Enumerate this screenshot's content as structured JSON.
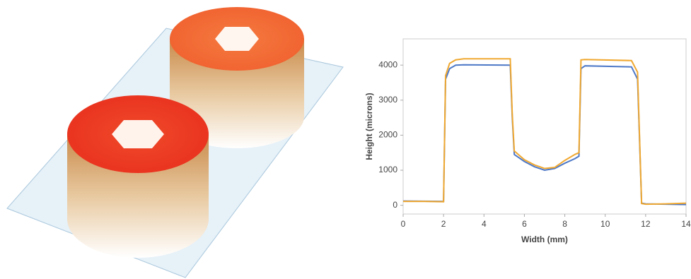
{
  "chart_data": {
    "type": "line",
    "x_label": "Width (mm)",
    "y_label": "Height (microns)",
    "x": [
      0,
      1,
      2,
      2.1,
      2.3,
      2.6,
      3,
      5.3,
      5.4,
      5.5,
      6,
      6.5,
      7,
      7.5,
      8,
      8.5,
      8.7,
      8.8,
      9,
      11.3,
      11.6,
      11.8,
      12,
      13,
      14
    ],
    "series": [
      {
        "color": "#4e79c7",
        "values": [
          120,
          115,
          110,
          3600,
          3900,
          4000,
          4010,
          4000,
          2500,
          1450,
          1250,
          1100,
          1000,
          1050,
          1200,
          1330,
          1400,
          3900,
          3980,
          3950,
          3600,
          60,
          40,
          30,
          20
        ]
      },
      {
        "color": "#f0a830",
        "values": [
          110,
          110,
          100,
          3700,
          4050,
          4150,
          4180,
          4180,
          2600,
          1550,
          1300,
          1150,
          1050,
          1080,
          1280,
          1450,
          1500,
          4150,
          4160,
          4130,
          3800,
          50,
          30,
          40,
          60
        ]
      }
    ],
    "xlim": [
      0,
      14
    ],
    "xticks": [
      0,
      2,
      4,
      6,
      8,
      10,
      12,
      14
    ],
    "ylim": [
      -250,
      4750
    ],
    "yticks": [
      0,
      1000,
      2000,
      3000,
      4000
    ]
  }
}
